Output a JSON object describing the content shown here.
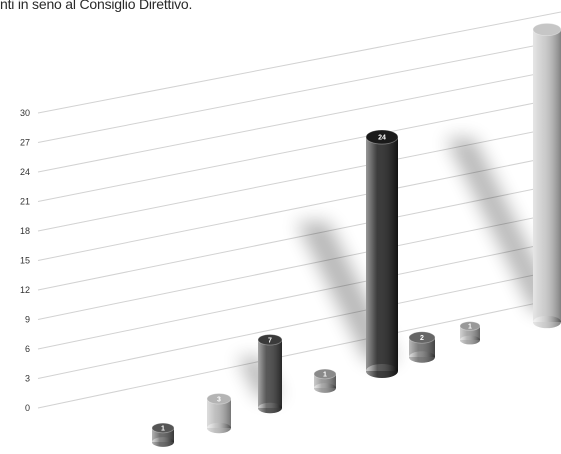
{
  "header": {
    "text": "nti in seno al Consiglio Direttivo."
  },
  "chart_data": {
    "type": "bar",
    "title": "",
    "xlabel": "",
    "ylabel": "",
    "ylim": [
      0,
      30
    ],
    "yticks": [
      0,
      3,
      6,
      9,
      12,
      15,
      18,
      21,
      24,
      27,
      30
    ],
    "grid": true,
    "legend": "none",
    "values": [
      1,
      3,
      7,
      1,
      24,
      2,
      1,
      30
    ],
    "data_labels": [
      "1",
      "3",
      "7",
      "1",
      "24",
      "2",
      "1",
      ""
    ],
    "colors": [
      "#555555",
      "#b4b4b4",
      "#3a3a3a",
      "#8a8a8a",
      "#1a1a1a",
      "#666666",
      "#999999",
      "#c6c6c6"
    ]
  }
}
